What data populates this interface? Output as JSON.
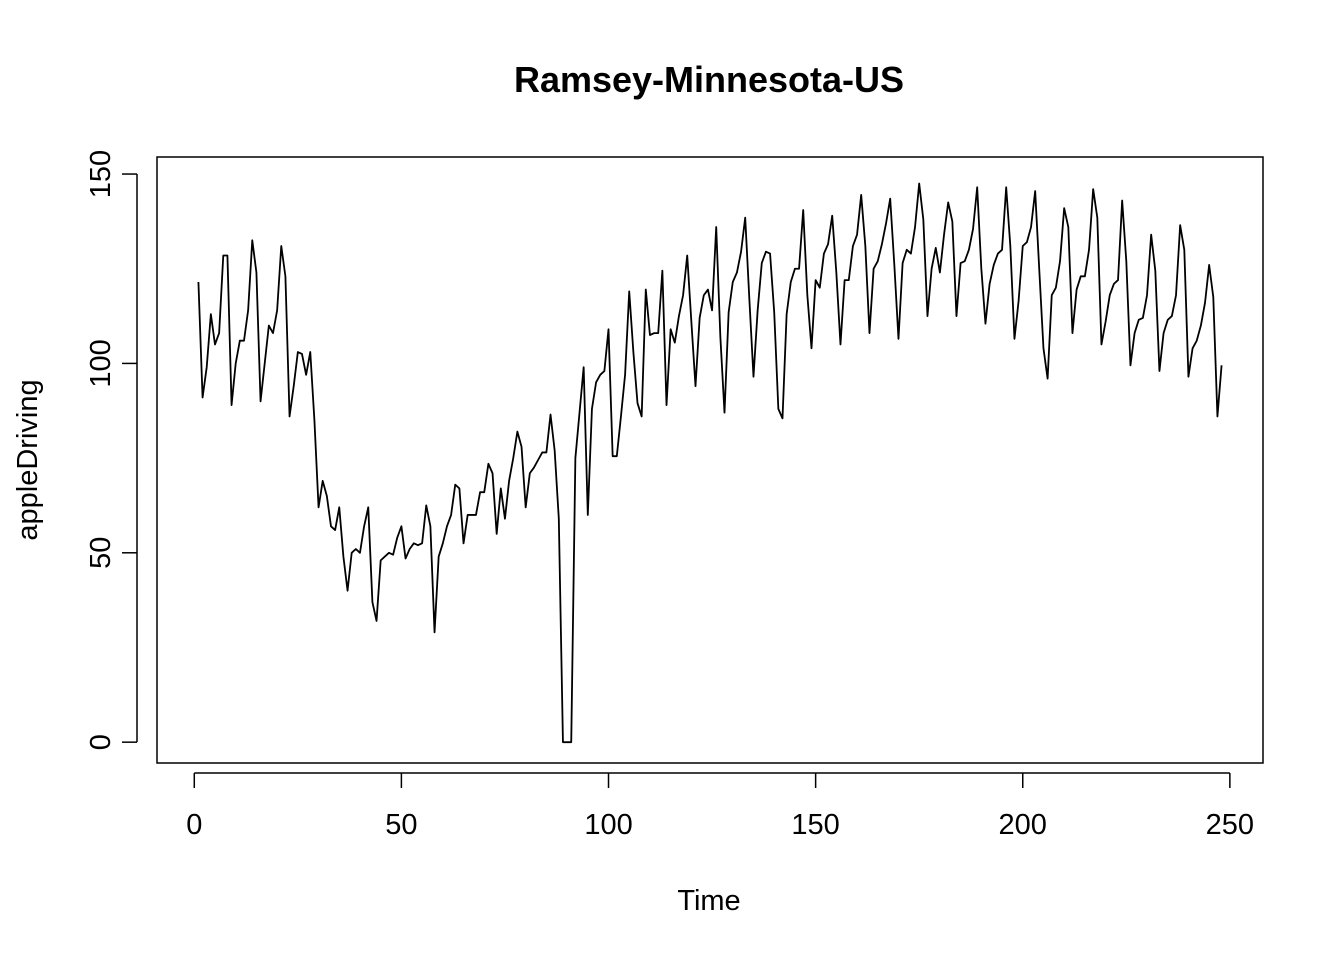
{
  "chart_data": {
    "type": "line",
    "title": "Ramsey-Minnesota-US",
    "xlabel": "Time",
    "ylabel": "appleDriving",
    "xlim": [
      -9,
      258
    ],
    "ylim": [
      -5.5,
      154.5
    ],
    "xticks": [
      "0",
      "50",
      "100",
      "150",
      "200",
      "250"
    ],
    "xtick_values": [
      0,
      50,
      100,
      150,
      200,
      250
    ],
    "yticks": [
      "0",
      "50",
      "100",
      "150"
    ],
    "ytick_values": [
      0,
      50,
      100,
      150
    ],
    "grid": false,
    "legend": "none",
    "line_color": "#000000",
    "series": [
      {
        "x": [
          1,
          2,
          3,
          4,
          5,
          6,
          7,
          8,
          9,
          10,
          11,
          12,
          13,
          14,
          15,
          16,
          17,
          18,
          19,
          20,
          21,
          22,
          23,
          24,
          25,
          26,
          27,
          28,
          29,
          30,
          31,
          32,
          33,
          34,
          35,
          36,
          37,
          38,
          39,
          40,
          41,
          42,
          43,
          44,
          45,
          46,
          47,
          48,
          49,
          50,
          51,
          52,
          53,
          54,
          55,
          56,
          57,
          58,
          59,
          60,
          61,
          62,
          63,
          64,
          65,
          66,
          67,
          68,
          69,
          70,
          71,
          72,
          73,
          74,
          75,
          76,
          77,
          78,
          79,
          80,
          81,
          82,
          83,
          84,
          85,
          86,
          87,
          88,
          89,
          90,
          91,
          92,
          93,
          94,
          95,
          96,
          97,
          98,
          99,
          100,
          101,
          102,
          103,
          104,
          105,
          106,
          107,
          108,
          109,
          110,
          111,
          112,
          113,
          114,
          115,
          116,
          117,
          118,
          119,
          120,
          121,
          122,
          123,
          124,
          125,
          126,
          127,
          128,
          129,
          130,
          131,
          132,
          133,
          134,
          135,
          136,
          137,
          138,
          139,
          140,
          141,
          142,
          143,
          144,
          145,
          146,
          147,
          148,
          149,
          150,
          151,
          152,
          153,
          154,
          155,
          156,
          157,
          158,
          159,
          160,
          161,
          162,
          163,
          164,
          165,
          166,
          167,
          168,
          169,
          170,
          171,
          172,
          173,
          174,
          175,
          176,
          177,
          178,
          179,
          180,
          181,
          182,
          183,
          184,
          185,
          186,
          187,
          188,
          189,
          190,
          191,
          192,
          193,
          194,
          195,
          196,
          197,
          198,
          199,
          200,
          201,
          202,
          203,
          204,
          205,
          206,
          207,
          208,
          209,
          210,
          211,
          212,
          213,
          214,
          215,
          216,
          217,
          218,
          219,
          220,
          221,
          222,
          223,
          224,
          225,
          226,
          227,
          228,
          229,
          230,
          231,
          232,
          233,
          234,
          235,
          236,
          237,
          238,
          239,
          240,
          241,
          242,
          243,
          244,
          245,
          246,
          247,
          248
        ],
        "values": [
          121.5,
          91,
          99,
          113,
          105,
          108,
          128.5,
          128.5,
          89,
          100,
          106,
          106,
          114,
          132.5,
          124,
          90,
          100,
          110,
          108,
          114,
          131,
          123,
          86,
          94,
          103,
          102.5,
          97,
          103,
          85,
          62,
          69,
          65,
          57,
          56,
          62,
          49,
          40,
          50,
          51,
          50,
          57,
          62,
          37,
          32,
          48,
          49,
          50,
          49.5,
          54,
          57,
          48.5,
          51,
          52.5,
          52,
          52.5,
          62.5,
          57,
          29,
          49,
          52.5,
          57,
          60,
          68,
          67,
          52.5,
          60,
          60,
          60,
          66,
          66,
          73.5,
          71,
          55,
          67,
          59,
          69,
          75,
          82,
          78,
          62,
          71,
          72.5,
          74.5,
          76.5,
          76.5,
          86.5,
          77,
          59,
          0,
          0,
          0,
          75,
          87,
          99,
          60,
          88,
          95,
          97,
          98,
          109,
          75.5,
          75.5,
          86,
          97,
          119,
          103,
          89.5,
          86,
          119.5,
          107.5,
          108,
          108,
          124.5,
          89,
          109,
          105.5,
          112.5,
          118,
          128.5,
          111,
          94,
          112,
          118,
          119.5,
          114,
          136,
          107,
          87,
          113.5,
          121.5,
          124,
          129.5,
          138.5,
          117,
          96.5,
          114,
          126.5,
          129.5,
          129,
          113.5,
          88,
          85.5,
          113,
          121.5,
          125,
          125,
          140.5,
          118,
          104,
          122,
          120,
          129,
          131.5,
          139,
          124,
          105,
          122,
          122,
          131,
          134,
          144.5,
          131,
          108,
          125,
          127,
          131.5,
          137,
          143.5,
          126,
          106.5,
          126.5,
          130,
          129,
          136,
          147.5,
          138,
          112.5,
          125,
          130.5,
          124,
          134,
          142.5,
          137.5,
          112.5,
          126.5,
          127,
          130,
          135.5,
          146.5,
          125,
          110.5,
          121,
          126,
          129,
          130,
          146.5,
          131,
          106.5,
          116.5,
          131,
          132,
          136,
          145.5,
          124.5,
          104,
          96,
          118,
          120,
          127,
          141,
          136,
          108,
          119.5,
          123,
          123,
          130,
          146,
          138.5,
          105,
          111,
          118,
          121,
          122,
          143,
          127,
          99.5,
          108,
          111.5,
          112,
          118,
          134,
          124.5,
          98,
          108,
          111.5,
          112.5,
          118,
          136.5,
          130,
          96.5,
          104,
          106,
          110,
          116,
          126,
          117.5,
          86,
          99.5
        ]
      }
    ]
  }
}
